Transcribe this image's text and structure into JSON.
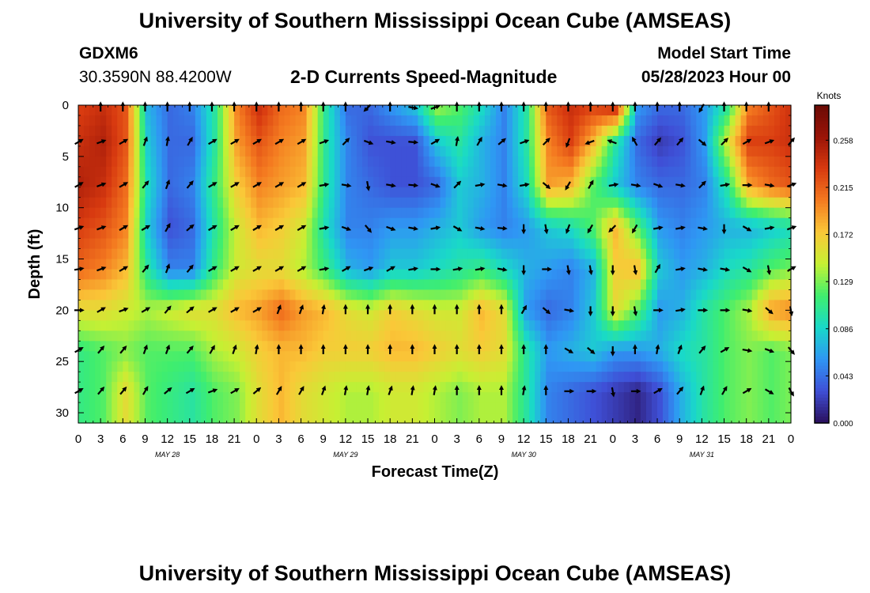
{
  "header": {
    "title": "University of Southern Mississippi Ocean Cube (AMSEAS)",
    "station": "GDXM6",
    "coords": "30.3590N  88.4200W",
    "subtitle": "2-D Currents Speed-Magnitude",
    "model_label": "Model Start Time",
    "model_time": "05/28/2023 Hour 00"
  },
  "footer": {
    "title": "University of Southern Mississippi Ocean Cube (AMSEAS)"
  },
  "colors": {
    "colormap": [
      "#2a0f5c",
      "#3f4fd6",
      "#2f96f4",
      "#19d9c9",
      "#3fee6e",
      "#c6f033",
      "#fac838",
      "#f47a20",
      "#d83a10",
      "#9a1408",
      "#6b0a05"
    ]
  },
  "chart_data": {
    "type": "heatmap",
    "title": "2-D Currents Speed-Magnitude",
    "xlabel": "Forecast Time(Z)",
    "ylabel": "Depth (ft)",
    "x_hours": [
      0,
      96
    ],
    "x_tick_labels": [
      "0",
      "3",
      "6",
      "9",
      "12",
      "15",
      "18",
      "21",
      "0",
      "3",
      "6",
      "9",
      "12",
      "15",
      "18",
      "21",
      "0",
      "3",
      "6",
      "9",
      "12",
      "15",
      "18",
      "21",
      "0",
      "3",
      "6",
      "9",
      "12",
      "15",
      "18",
      "21",
      "0"
    ],
    "date_labels": [
      {
        "hour": 12,
        "label": "MAY 28"
      },
      {
        "hour": 36,
        "label": "MAY 29"
      },
      {
        "hour": 60,
        "label": "MAY 30"
      },
      {
        "hour": 84,
        "label": "MAY 31"
      }
    ],
    "ylim": [
      0,
      31
    ],
    "y_tick_labels": [
      "0",
      "5",
      "10",
      "15",
      "20",
      "25",
      "30"
    ],
    "colorbar": {
      "label": "Knots",
      "ticks": [
        "0.258",
        "0.215",
        "0.172",
        "0.129",
        "0.086",
        "0.043",
        "0.000"
      ],
      "range": [
        0,
        0.29
      ]
    },
    "times": [
      0,
      3,
      6,
      9,
      12,
      15,
      18,
      21,
      24,
      27,
      30,
      33,
      36,
      39,
      42,
      45,
      48,
      51,
      54,
      57,
      60,
      63,
      66,
      69,
      72,
      75,
      78,
      81,
      84,
      87,
      90,
      93,
      96
    ],
    "depths": [
      0,
      3.6,
      7.8,
      12,
      16,
      20,
      23.9,
      27.9
    ],
    "speed": [
      [
        0.23,
        0.24,
        0.22,
        0.07,
        0.04,
        0.05,
        0.1,
        0.2,
        0.24,
        0.21,
        0.2,
        0.1,
        0.04,
        0.04,
        0.06,
        0.08,
        0.14,
        0.12,
        0.09,
        0.05,
        0.1,
        0.22,
        0.24,
        0.23,
        0.25,
        0.06,
        0.04,
        0.04,
        0.06,
        0.1,
        0.2,
        0.22,
        0.24
      ],
      [
        0.24,
        0.25,
        0.22,
        0.08,
        0.04,
        0.04,
        0.1,
        0.19,
        0.22,
        0.2,
        0.19,
        0.1,
        0.05,
        0.03,
        0.03,
        0.03,
        0.08,
        0.1,
        0.07,
        0.05,
        0.1,
        0.2,
        0.23,
        0.18,
        0.1,
        0.04,
        0.02,
        0.03,
        0.06,
        0.15,
        0.23,
        0.23,
        0.24
      ],
      [
        0.25,
        0.24,
        0.21,
        0.09,
        0.04,
        0.05,
        0.11,
        0.17,
        0.2,
        0.19,
        0.18,
        0.1,
        0.05,
        0.04,
        0.03,
        0.03,
        0.04,
        0.08,
        0.07,
        0.05,
        0.09,
        0.19,
        0.18,
        0.12,
        0.08,
        0.05,
        0.04,
        0.04,
        0.05,
        0.1,
        0.19,
        0.21,
        0.22
      ],
      [
        0.23,
        0.22,
        0.2,
        0.08,
        0.03,
        0.04,
        0.1,
        0.15,
        0.18,
        0.17,
        0.15,
        0.09,
        0.05,
        0.05,
        0.06,
        0.06,
        0.07,
        0.08,
        0.06,
        0.05,
        0.06,
        0.08,
        0.09,
        0.12,
        0.18,
        0.12,
        0.06,
        0.05,
        0.06,
        0.07,
        0.07,
        0.08,
        0.09
      ],
      [
        0.21,
        0.2,
        0.18,
        0.1,
        0.05,
        0.05,
        0.11,
        0.15,
        0.16,
        0.16,
        0.14,
        0.11,
        0.07,
        0.06,
        0.08,
        0.08,
        0.09,
        0.1,
        0.11,
        0.09,
        0.07,
        0.06,
        0.05,
        0.07,
        0.17,
        0.18,
        0.08,
        0.06,
        0.07,
        0.09,
        0.1,
        0.12,
        0.13
      ],
      [
        0.16,
        0.16,
        0.15,
        0.14,
        0.15,
        0.16,
        0.16,
        0.18,
        0.19,
        0.21,
        0.19,
        0.18,
        0.16,
        0.15,
        0.17,
        0.16,
        0.15,
        0.15,
        0.18,
        0.16,
        0.06,
        0.04,
        0.05,
        0.08,
        0.16,
        0.12,
        0.06,
        0.07,
        0.1,
        0.12,
        0.14,
        0.19,
        0.2
      ],
      [
        0.11,
        0.12,
        0.13,
        0.12,
        0.12,
        0.12,
        0.14,
        0.15,
        0.17,
        0.18,
        0.18,
        0.17,
        0.17,
        0.17,
        0.18,
        0.18,
        0.17,
        0.16,
        0.17,
        0.16,
        0.1,
        0.06,
        0.07,
        0.08,
        0.06,
        0.06,
        0.07,
        0.09,
        0.1,
        0.12,
        0.13,
        0.12,
        0.13
      ],
      [
        0.11,
        0.12,
        0.16,
        0.12,
        0.11,
        0.1,
        0.12,
        0.13,
        0.16,
        0.18,
        0.16,
        0.15,
        0.14,
        0.14,
        0.15,
        0.15,
        0.14,
        0.13,
        0.14,
        0.14,
        0.1,
        0.05,
        0.04,
        0.03,
        0.02,
        0.01,
        0.03,
        0.07,
        0.1,
        0.12,
        0.13,
        0.12,
        0.13
      ]
    ],
    "direction_deg": [
      [
        0,
        0,
        0,
        0,
        0,
        0,
        0,
        0,
        0,
        0,
        0,
        0,
        0,
        225,
        0,
        100,
        70,
        0,
        0,
        0,
        0,
        0,
        0,
        0,
        0,
        0,
        0,
        0,
        210,
        0,
        0,
        0,
        0
      ],
      [
        60,
        70,
        60,
        20,
        10,
        30,
        60,
        60,
        60,
        60,
        60,
        70,
        45,
        110,
        100,
        95,
        60,
        10,
        30,
        50,
        70,
        45,
        200,
        250,
        290,
        330,
        40,
        40,
        130,
        45,
        60,
        70,
        40
      ],
      [
        60,
        70,
        60,
        40,
        20,
        40,
        60,
        60,
        60,
        60,
        60,
        80,
        100,
        170,
        100,
        95,
        110,
        45,
        80,
        100,
        80,
        130,
        210,
        30,
        80,
        100,
        110,
        100,
        45,
        80,
        90,
        100,
        70
      ],
      [
        70,
        70,
        60,
        60,
        30,
        50,
        60,
        60,
        60,
        60,
        60,
        80,
        110,
        140,
        110,
        100,
        80,
        120,
        100,
        95,
        180,
        170,
        200,
        210,
        225,
        210,
        80,
        80,
        100,
        180,
        120,
        80,
        70
      ],
      [
        80,
        70,
        60,
        40,
        20,
        40,
        60,
        60,
        60,
        60,
        60,
        80,
        60,
        70,
        60,
        80,
        90,
        80,
        80,
        100,
        180,
        90,
        170,
        170,
        180,
        170,
        30,
        80,
        100,
        100,
        120,
        170,
        60
      ],
      [
        90,
        60,
        70,
        60,
        40,
        50,
        60,
        60,
        60,
        20,
        20,
        10,
        0,
        0,
        0,
        0,
        0,
        0,
        0,
        0,
        30,
        130,
        100,
        180,
        180,
        170,
        90,
        80,
        90,
        90,
        100,
        130,
        170
      ],
      [
        60,
        40,
        40,
        20,
        20,
        40,
        30,
        20,
        10,
        0,
        0,
        0,
        0,
        0,
        0,
        0,
        0,
        0,
        0,
        0,
        0,
        0,
        120,
        130,
        180,
        0,
        10,
        20,
        40,
        60,
        100,
        110,
        140
      ],
      [
        60,
        40,
        40,
        30,
        50,
        60,
        70,
        60,
        50,
        30,
        30,
        20,
        10,
        10,
        20,
        10,
        10,
        0,
        0,
        0,
        10,
        0,
        90,
        90,
        170,
        90,
        60,
        40,
        20,
        30,
        60,
        120,
        150
      ]
    ]
  }
}
